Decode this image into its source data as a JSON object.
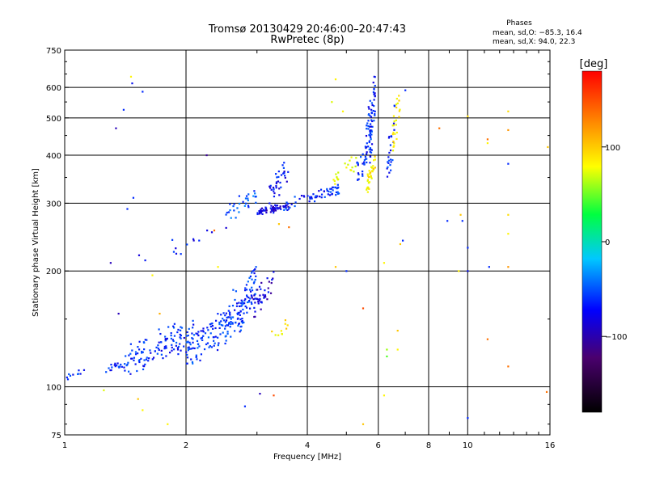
{
  "chart_data": {
    "type": "scatter",
    "title": "Tromsø 20130429 20:46:00–20:47:43",
    "subtitle": "RwPretec (8p)",
    "stats": {
      "heading": "Phases",
      "line1": "mean, sd,O: −85.3, 16.4",
      "line2": "mean, sd,X:  94.0, 22.3"
    },
    "xlabel": "Frequency [MHz]",
    "ylabel": "Stationary phase Virtual Height [km]",
    "x_scale": "log",
    "y_scale": "log",
    "xlim": [
      1,
      16
    ],
    "ylim": [
      75,
      750
    ],
    "x_ticks": [
      1,
      2,
      4,
      6,
      8,
      10,
      16
    ],
    "x_tick_labels": [
      "1",
      "2",
      "4",
      "6",
      "8",
      "10",
      "16"
    ],
    "y_ticks": [
      75,
      100,
      200,
      300,
      400,
      500,
      600,
      750
    ],
    "y_tick_labels": [
      "75",
      "100",
      "200",
      "300",
      "400",
      "500",
      "600",
      "750"
    ],
    "grid": true,
    "colorbar": {
      "label": "[deg]",
      "range": [
        -180,
        180
      ],
      "ticks": [
        100,
        0,
        -100
      ],
      "tick_labels": [
        "100",
        "0",
        "−100"
      ]
    },
    "point_groups": [
      {
        "x_range": [
          1.0,
          1.12
        ],
        "y_range": [
          103,
          112
        ],
        "phase": -100,
        "count": 10
      },
      {
        "x_range": [
          1.25,
          1.45
        ],
        "y_range": [
          108,
          118
        ],
        "phase": -100,
        "count": 18
      },
      {
        "x_range": [
          1.4,
          2.1
        ],
        "y_range": [
          108,
          150
        ],
        "phase": -100,
        "count": 120
      },
      {
        "x_range": [
          2.0,
          2.8
        ],
        "y_range": [
          115,
          165
        ],
        "phase": -95,
        "count": 130
      },
      {
        "x_range": [
          2.5,
          3.0
        ],
        "y_range": [
          135,
          205
        ],
        "phase": -95,
        "count": 80
      },
      {
        "x_range": [
          2.9,
          3.3
        ],
        "y_range": [
          150,
          200
        ],
        "phase": -120,
        "count": 40
      },
      {
        "x_range": [
          3.2,
          3.6
        ],
        "y_range": [
          130,
          150
        ],
        "phase": 100,
        "count": 10
      },
      {
        "x_range": [
          2.5,
          3.0
        ],
        "y_range": [
          270,
          330
        ],
        "phase": -85,
        "count": 30
      },
      {
        "x_range": [
          3.0,
          3.6
        ],
        "y_range": [
          280,
          300
        ],
        "phase": -120,
        "count": 60
      },
      {
        "x_range": [
          3.2,
          3.6
        ],
        "y_range": [
          300,
          390
        ],
        "phase": -110,
        "count": 35
      },
      {
        "x_range": [
          3.5,
          4.0
        ],
        "y_range": [
          285,
          320
        ],
        "phase": -100,
        "count": 15
      },
      {
        "x_range": [
          4.0,
          4.8
        ],
        "y_range": [
          300,
          335
        ],
        "phase": -100,
        "count": 45
      },
      {
        "x_range": [
          4.6,
          5.3
        ],
        "y_range": [
          320,
          400
        ],
        "phase": 80,
        "count": 20
      },
      {
        "x_range": [
          5.3,
          5.8
        ],
        "y_range": [
          330,
          450
        ],
        "phase": -100,
        "count": 40
      },
      {
        "x_range": [
          5.6,
          5.9
        ],
        "y_range": [
          380,
          640
        ],
        "phase": -100,
        "count": 60
      },
      {
        "x_range": [
          5.6,
          5.9
        ],
        "y_range": [
          310,
          400
        ],
        "phase": 100,
        "count": 35
      },
      {
        "x_range": [
          6.3,
          6.6
        ],
        "y_range": [
          330,
          550
        ],
        "phase": -100,
        "count": 25
      },
      {
        "x_range": [
          6.5,
          6.8
        ],
        "y_range": [
          400,
          600
        ],
        "phase": 100,
        "count": 25
      },
      {
        "x_range": [
          1.5,
          2.6
        ],
        "y_range": [
          210,
          260
        ],
        "phase": -110,
        "count": 14
      }
    ],
    "isolated_points": [
      {
        "x": 1.46,
        "y": 640,
        "phase": 100
      },
      {
        "x": 1.47,
        "y": 615,
        "phase": -110
      },
      {
        "x": 1.56,
        "y": 585,
        "phase": -100
      },
      {
        "x": 1.4,
        "y": 525,
        "phase": -100
      },
      {
        "x": 1.34,
        "y": 470,
        "phase": -130
      },
      {
        "x": 1.43,
        "y": 290,
        "phase": -100
      },
      {
        "x": 1.48,
        "y": 310,
        "phase": -100
      },
      {
        "x": 1.3,
        "y": 210,
        "phase": -130
      },
      {
        "x": 1.36,
        "y": 155,
        "phase": -130
      },
      {
        "x": 2.25,
        "y": 400,
        "phase": -140
      },
      {
        "x": 1.25,
        "y": 98,
        "phase": 80
      },
      {
        "x": 1.52,
        "y": 93,
        "phase": 120
      },
      {
        "x": 1.56,
        "y": 87,
        "phase": 100
      },
      {
        "x": 1.8,
        "y": 80,
        "phase": 100
      },
      {
        "x": 2.8,
        "y": 89,
        "phase": -100
      },
      {
        "x": 3.05,
        "y": 96,
        "phase": -130
      },
      {
        "x": 3.3,
        "y": 95,
        "phase": 160
      },
      {
        "x": 4.7,
        "y": 630,
        "phase": 100
      },
      {
        "x": 4.6,
        "y": 550,
        "phase": 80
      },
      {
        "x": 4.9,
        "y": 520,
        "phase": 100
      },
      {
        "x": 4.7,
        "y": 205,
        "phase": 120
      },
      {
        "x": 5.0,
        "y": 200,
        "phase": -100
      },
      {
        "x": 5.5,
        "y": 160,
        "phase": 160
      },
      {
        "x": 5.5,
        "y": 80,
        "phase": 120
      },
      {
        "x": 6.2,
        "y": 210,
        "phase": 100
      },
      {
        "x": 6.2,
        "y": 95,
        "phase": 100
      },
      {
        "x": 6.3,
        "y": 125,
        "phase": 40
      },
      {
        "x": 6.3,
        "y": 120,
        "phase": 20
      },
      {
        "x": 6.7,
        "y": 140,
        "phase": 120
      },
      {
        "x": 6.7,
        "y": 125,
        "phase": 100
      },
      {
        "x": 6.8,
        "y": 235,
        "phase": 120
      },
      {
        "x": 6.9,
        "y": 240,
        "phase": -100
      },
      {
        "x": 7.0,
        "y": 590,
        "phase": -100
      },
      {
        "x": 8.5,
        "y": 470,
        "phase": 150
      },
      {
        "x": 8.9,
        "y": 270,
        "phase": -100
      },
      {
        "x": 9.6,
        "y": 280,
        "phase": 120
      },
      {
        "x": 9.7,
        "y": 270,
        "phase": -100
      },
      {
        "x": 9.5,
        "y": 200,
        "phase": 100
      },
      {
        "x": 10.0,
        "y": 230,
        "phase": -100
      },
      {
        "x": 10.0,
        "y": 200,
        "phase": -110
      },
      {
        "x": 10.0,
        "y": 83,
        "phase": -100
      },
      {
        "x": 10.0,
        "y": 505,
        "phase": 110
      },
      {
        "x": 11.2,
        "y": 440,
        "phase": 150
      },
      {
        "x": 11.2,
        "y": 430,
        "phase": 100
      },
      {
        "x": 11.3,
        "y": 205,
        "phase": -100
      },
      {
        "x": 11.2,
        "y": 133,
        "phase": 150
      },
      {
        "x": 12.6,
        "y": 520,
        "phase": 110
      },
      {
        "x": 12.6,
        "y": 465,
        "phase": 140
      },
      {
        "x": 12.6,
        "y": 380,
        "phase": -100
      },
      {
        "x": 12.6,
        "y": 280,
        "phase": 110
      },
      {
        "x": 12.6,
        "y": 250,
        "phase": 100
      },
      {
        "x": 12.6,
        "y": 205,
        "phase": 140
      },
      {
        "x": 12.6,
        "y": 113,
        "phase": 150
      },
      {
        "x": 15.8,
        "y": 420,
        "phase": 120
      },
      {
        "x": 15.7,
        "y": 97,
        "phase": 150
      },
      {
        "x": 1.65,
        "y": 195,
        "phase": 100
      },
      {
        "x": 1.72,
        "y": 155,
        "phase": 130
      },
      {
        "x": 2.4,
        "y": 205,
        "phase": 100
      },
      {
        "x": 2.35,
        "y": 255,
        "phase": 150
      },
      {
        "x": 3.4,
        "y": 265,
        "phase": 120
      },
      {
        "x": 3.6,
        "y": 260,
        "phase": 150
      }
    ]
  },
  "colors": {
    "background": "#ffffff",
    "axes": "#000000",
    "grid": "#000000"
  }
}
